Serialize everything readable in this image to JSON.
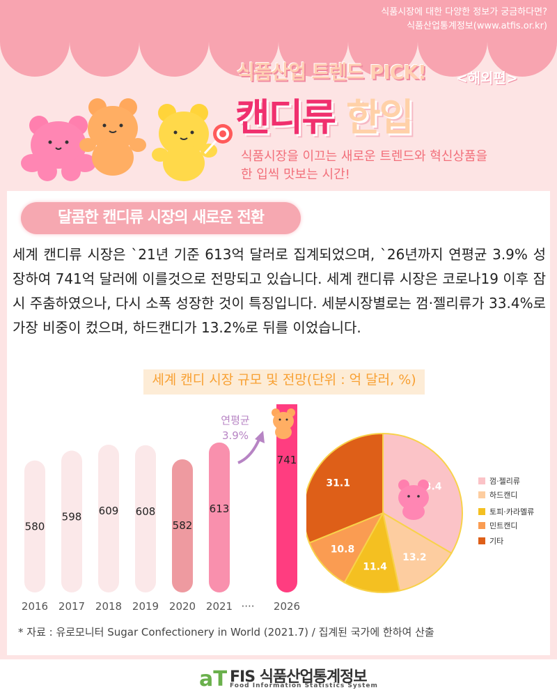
{
  "header": {
    "info_line1": "식품시장에 대한 다양한 정보가 궁금하다면?",
    "info_line2": "식품산업통계정보(www.atfis.or.kr)",
    "trend_title": "식품산업 트렌드 PICK!",
    "trend_sub": "<해외편>",
    "main_a": "캔디류",
    "main_b": "한입",
    "desc_line1": "식품시장을 이끄는 새로운 트렌드와 혁신상품을",
    "desc_line2": "한 입씩 맛보는 시간!"
  },
  "section": {
    "title": "달콤한 캔디류 시장의 새로운 전환",
    "body": "세계 캔디류 시장은 `21년 기준 613억 달러로 집계되었으며, `26년까지 연평균 3.9% 성장하여 741억 달러에 이를것으로 전망되고 있습니다. 세계 캔디류 시장은 코로나19 이후 잠시 주춤하였으나, 다시 소폭 성장한 것이 특징입니다. 세분시장별로는 껌·젤리류가 33.4%로 가장 비중이 컸으며, 하드캔디가 13.2%로 뒤를 이었습니다."
  },
  "chart_title": "세계 캔디 시장 규모 및 전망(단위 : 억 달러, %)",
  "growth": {
    "label": "연평균",
    "value": "3.9%"
  },
  "ellipsis": "····",
  "chart_data": [
    {
      "type": "bar",
      "categories": [
        "2016",
        "2017",
        "2018",
        "2019",
        "2020",
        "2021",
        "2026"
      ],
      "values": [
        580,
        598,
        609,
        608,
        582,
        613,
        741
      ],
      "labels": [
        "580",
        "598",
        "609",
        "608",
        "582",
        "613",
        "741"
      ],
      "colors": [
        "#fbe8e9",
        "#fbe8e9",
        "#fbe8e9",
        "#fbe8e9",
        "#ee9aa0",
        "#f990ad",
        "#ff3d80"
      ]
    },
    {
      "type": "pie",
      "categories": [
        "껌·젤리류",
        "하드캔디",
        "토피·카라멜류",
        "민트캔디",
        "기타"
      ],
      "values": [
        33.4,
        13.2,
        11.4,
        10.8,
        31.1
      ],
      "labels": [
        "33.4",
        "13.2",
        "11.4",
        "10.8",
        "31.1"
      ],
      "colors": [
        "#fbc3c7",
        "#fdcda0",
        "#f4c021",
        "#fa9c52",
        "#de5f18"
      ],
      "legend": "right"
    }
  ],
  "footnote": "* 자료 : 유로모니터 Sugar Confectionery in World (2021.7) / 집계된 국가에 한하여 산출",
  "footer": {
    "logo": "aT",
    "name": "FIS 식품산업통계정보",
    "sub": "Food Information Statistics System"
  }
}
